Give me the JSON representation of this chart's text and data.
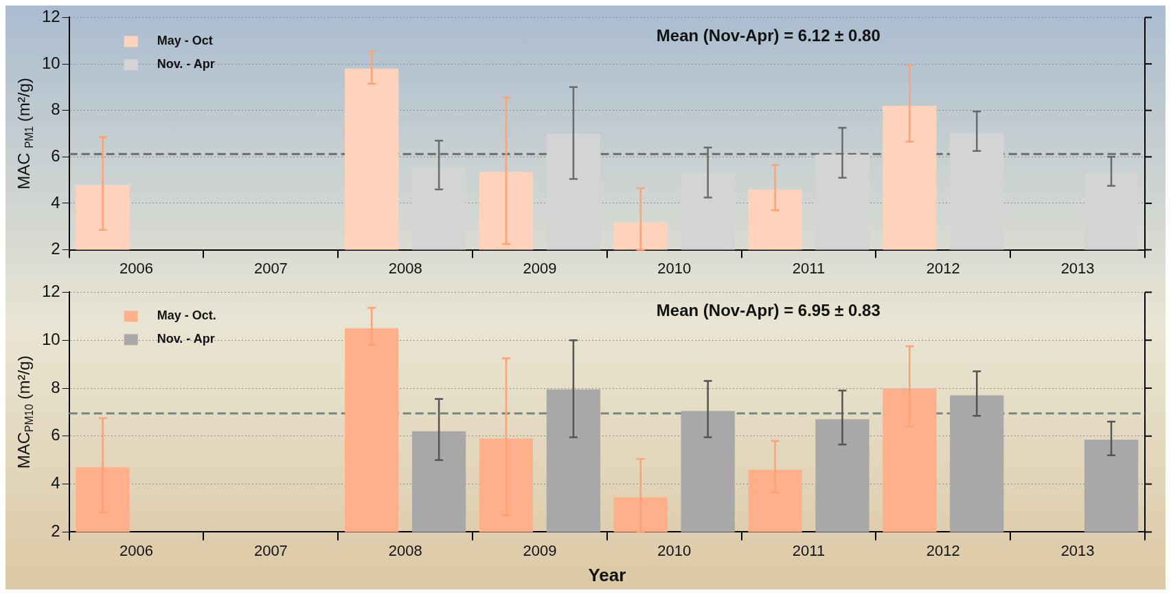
{
  "chart_data": [
    {
      "type": "bar",
      "ylabel": "MAC $_{PM1}$ (m²/g)",
      "categories": [
        "2006",
        "2007",
        "2008",
        "2009",
        "2010",
        "2011",
        "2012",
        "2013"
      ],
      "series": [
        {
          "name": "May - Oct",
          "color": "#ffd2bb",
          "values": [
            4.8,
            null,
            9.8,
            5.35,
            3.2,
            4.6,
            8.2,
            null
          ],
          "errors": [
            [
              2.85,
              6.85
            ],
            null,
            [
              9.15,
              10.55
            ],
            [
              2.25,
              8.55
            ],
            [
              2.0,
              4.65
            ],
            [
              3.7,
              5.65
            ],
            [
              6.65,
              9.95
            ],
            null
          ]
        },
        {
          "name": "Nov. - Apr",
          "color": "#d4d4d4",
          "values": [
            null,
            null,
            5.6,
            7.0,
            5.3,
            6.1,
            7.05,
            5.3
          ],
          "errors": [
            null,
            null,
            [
              4.6,
              6.7
            ],
            [
              5.05,
              9.0
            ],
            [
              4.25,
              6.4
            ],
            [
              5.1,
              7.25
            ],
            [
              6.25,
              7.95
            ],
            [
              4.75,
              6.0
            ]
          ]
        }
      ],
      "ylim": [
        2,
        12
      ],
      "yticks": [
        2,
        4,
        6,
        8,
        10,
        12
      ],
      "grid": "y",
      "legend": "top left",
      "ref_lines": [
        {
          "axis": "y",
          "value": 6.12,
          "color": "#6b6b6b",
          "line_style": "dashed"
        }
      ],
      "annotations": [
        "Mean (Nov-Apr) = 6.12 ± 0.80"
      ]
    },
    {
      "type": "bar",
      "xlabel": "Year",
      "ylabel": "MAC$_{PM10}$ (m²/g)",
      "categories": [
        "2006",
        "2007",
        "2008",
        "2009",
        "2010",
        "2011",
        "2012",
        "2013"
      ],
      "series": [
        {
          "name": "May - Oct.",
          "color": "#ffb08a",
          "values": [
            4.7,
            null,
            10.5,
            5.9,
            3.45,
            4.6,
            8.0,
            null
          ],
          "errors": [
            [
              2.8,
              6.75
            ],
            null,
            [
              9.8,
              11.35
            ],
            [
              2.7,
              9.25
            ],
            [
              2.0,
              5.05
            ],
            [
              3.65,
              5.8
            ],
            [
              6.4,
              9.75
            ],
            null
          ]
        },
        {
          "name": "Nov. - Apr",
          "color": "#a8a8a8",
          "values": [
            null,
            null,
            6.2,
            7.95,
            7.05,
            6.7,
            7.7,
            5.85
          ],
          "errors": [
            null,
            null,
            [
              5.0,
              7.55
            ],
            [
              5.95,
              10.0
            ],
            [
              5.95,
              8.3
            ],
            [
              5.65,
              7.9
            ],
            [
              6.85,
              8.7
            ],
            [
              5.2,
              6.6
            ]
          ]
        }
      ],
      "ylim": [
        2,
        12
      ],
      "yticks": [
        2,
        4,
        6,
        8,
        10,
        12
      ],
      "grid": "y",
      "legend": "top left",
      "ref_lines": [
        {
          "axis": "y",
          "value": 6.95,
          "color": "#808080",
          "line_style": "dashed"
        }
      ],
      "annotations": [
        "Mean (Nov-Apr) = 6.95 ± 0.83"
      ]
    }
  ]
}
